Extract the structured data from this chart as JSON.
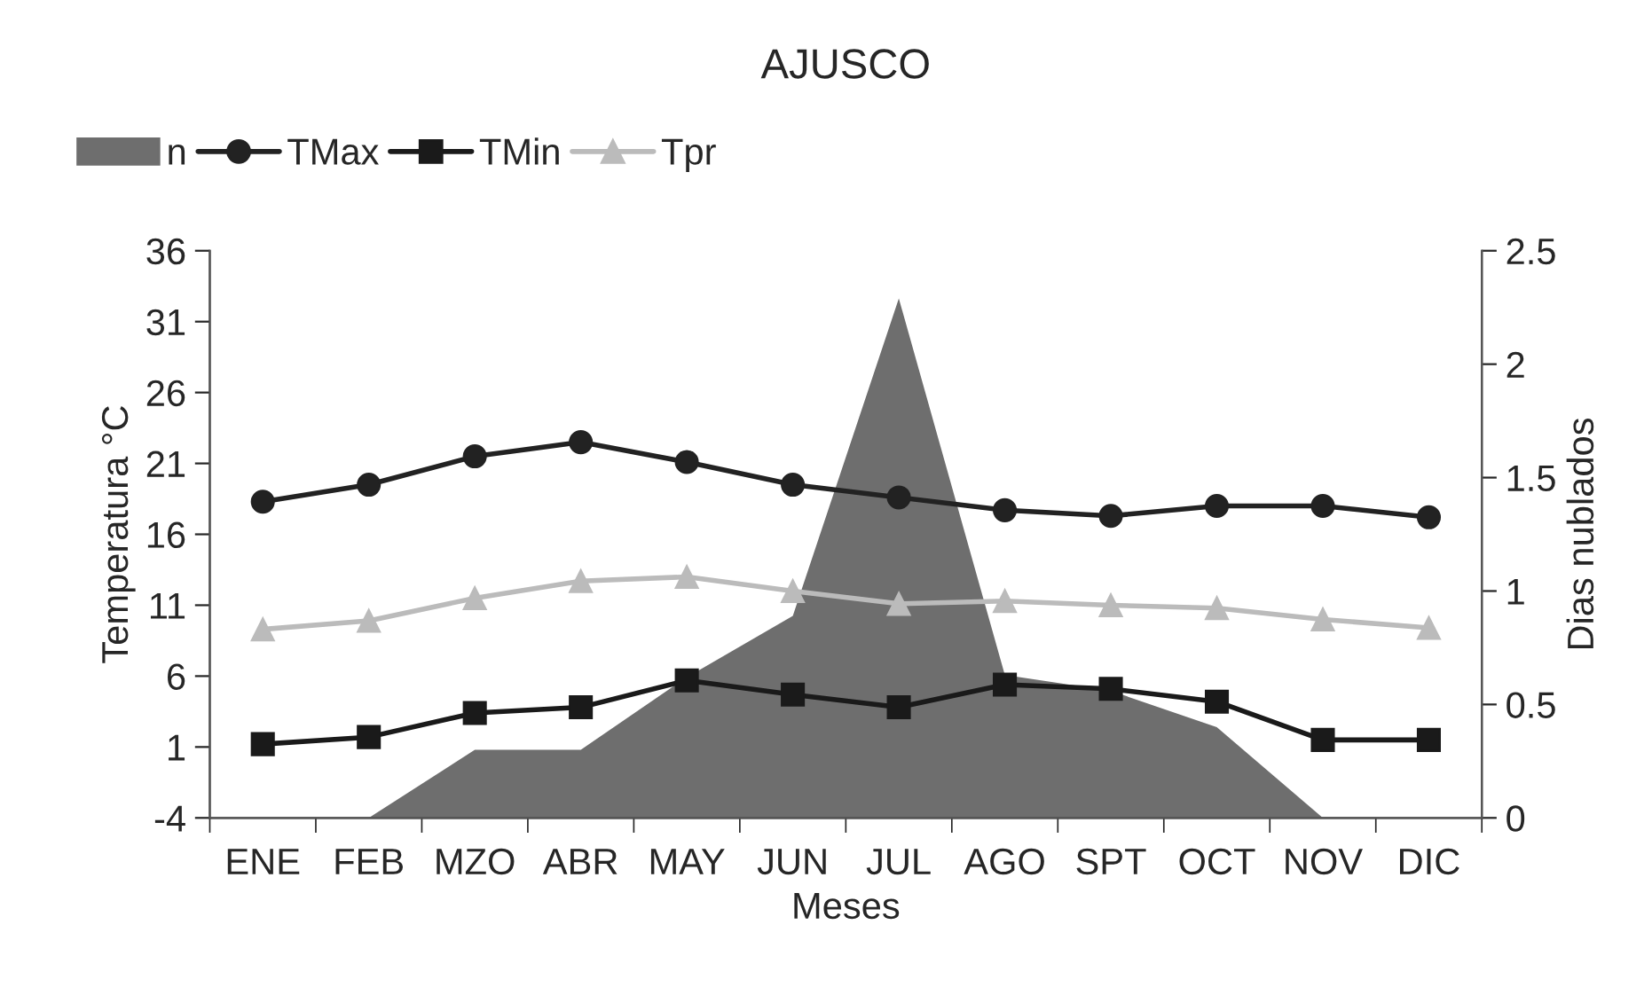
{
  "chart_data": {
    "type": "line",
    "title": "AJUSCO",
    "xlabel": "Meses",
    "ylabel": "Temperatura °C",
    "y2label": "Dias nublados",
    "categories": [
      "ENE",
      "FEB",
      "MZO",
      "ABR",
      "MAY",
      "JUN",
      "JUL",
      "AGO",
      "SPT",
      "OCT",
      "NOV",
      "DIC"
    ],
    "series": [
      {
        "name": "n",
        "type": "area",
        "axis": "y2",
        "color": "#6e6e6e",
        "values": [
          0,
          0,
          0.3,
          0.3,
          0.62,
          0.89,
          2.29,
          0.63,
          0.56,
          0.4,
          0,
          0
        ]
      },
      {
        "name": "TMax",
        "color": "#222222",
        "marker": "circle",
        "values": [
          18.3,
          19.5,
          21.5,
          22.5,
          21.1,
          19.5,
          18.6,
          17.7,
          17.3,
          18.0,
          18.0,
          17.2
        ]
      },
      {
        "name": "TMin",
        "color": "#1a1a1a",
        "marker": "square",
        "values": [
          1.2,
          1.7,
          3.4,
          3.8,
          5.7,
          4.7,
          3.8,
          5.4,
          5.1,
          4.2,
          1.5,
          1.5
        ]
      },
      {
        "name": "Tpr",
        "color": "#bbbbbb",
        "marker": "triangle",
        "values": [
          9.3,
          9.9,
          11.5,
          12.7,
          13.0,
          12.0,
          11.1,
          11.3,
          11.0,
          10.8,
          10.0,
          9.4
        ]
      }
    ],
    "ylim": [
      -4,
      36
    ],
    "yticks": [
      -4,
      1,
      6,
      11,
      16,
      21,
      26,
      31,
      36
    ],
    "y2lim": [
      0,
      2.5
    ],
    "y2ticks": [
      0,
      0.5,
      1,
      1.5,
      2,
      2.5
    ],
    "grid": false,
    "legend": "top left"
  }
}
